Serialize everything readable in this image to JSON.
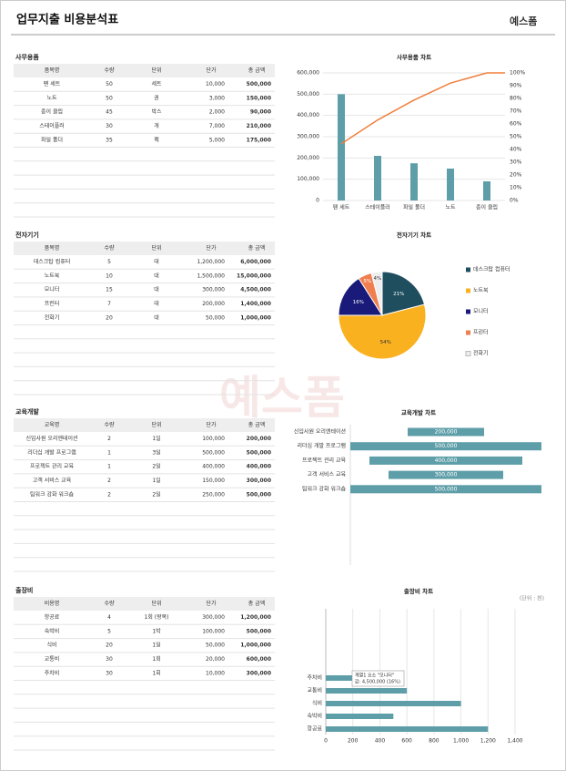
{
  "header": {
    "title": "업무지출 비용분석표",
    "logo": "예스폼"
  },
  "tables": [
    {
      "label": "사무용품",
      "columns": [
        "품목명",
        "수량",
        "단위",
        "단가",
        "총 금액"
      ],
      "rows": [
        [
          "펜 세트",
          "50",
          "세트",
          "10,000",
          "500,000"
        ],
        [
          "노트",
          "50",
          "권",
          "3,000",
          "150,000"
        ],
        [
          "종이 클립",
          "45",
          "박스",
          "2,000",
          "90,000"
        ],
        [
          "스테이플러",
          "30",
          "개",
          "7,000",
          "210,000"
        ],
        [
          "파일 폴더",
          "35",
          "팩",
          "5,000",
          "175,000"
        ]
      ]
    },
    {
      "label": "전자기기",
      "columns": [
        "품목명",
        "수량",
        "단위",
        "단가",
        "총 금액"
      ],
      "rows": [
        [
          "데스크탑 컴퓨터",
          "5",
          "대",
          "1,200,000",
          "6,000,000"
        ],
        [
          "노트북",
          "10",
          "대",
          "1,500,000",
          "15,000,000"
        ],
        [
          "모니터",
          "15",
          "대",
          "300,000",
          "4,500,000"
        ],
        [
          "프린터",
          "7",
          "대",
          "200,000",
          "1,400,000"
        ],
        [
          "전화기",
          "20",
          "대",
          "50,000",
          "1,000,000"
        ]
      ]
    },
    {
      "label": "교육개발",
      "columns": [
        "교육명",
        "수량",
        "단위",
        "단가",
        "총 금액"
      ],
      "rows": [
        [
          "신입사원 오리엔테이션",
          "2",
          "1일",
          "100,000",
          "200,000"
        ],
        [
          "리더십 개발 프로그램",
          "1",
          "3일",
          "500,000",
          "500,000"
        ],
        [
          "프로젝트 관리 교육",
          "1",
          "2일",
          "400,000",
          "400,000"
        ],
        [
          "고객 서비스 교육",
          "2",
          "1일",
          "150,000",
          "300,000"
        ],
        [
          "팀워크 강화 워크숍",
          "2",
          "2일",
          "250,000",
          "500,000"
        ]
      ]
    },
    {
      "label": "출장비",
      "columns": [
        "비용명",
        "수량",
        "단위",
        "단가",
        "총 금액"
      ],
      "rows": [
        [
          "항공료",
          "4",
          "1회 (왕복)",
          "300,000",
          "1,200,000"
        ],
        [
          "숙박비",
          "5",
          "1박",
          "100,000",
          "500,000"
        ],
        [
          "식비",
          "20",
          "1일",
          "50,000",
          "1,000,000"
        ],
        [
          "교통비",
          "30",
          "1회",
          "20,000",
          "600,000"
        ],
        [
          "주차비",
          "30",
          "1회",
          "10,000",
          "300,000"
        ]
      ]
    }
  ],
  "chart_data": [
    {
      "type": "pareto",
      "title": "사무용품 차트",
      "categories": [
        "펜 세트",
        "스테이플러",
        "파일 폴더",
        "노트",
        "종이 클립"
      ],
      "series": [
        {
          "values": [
            500000,
            210000,
            175000,
            150000,
            90000
          ],
          "color": "#5e9ea8"
        },
        {
          "values": [
            44.4,
            63.1,
            78.7,
            92,
            100
          ],
          "color": "#f07f3c",
          "axis": "y2"
        }
      ],
      "ylim": [
        0,
        600000
      ],
      "yticks": [
        0,
        {
          "value": 100000,
          "label": "100,000"
        },
        {
          "value": 200000,
          "label": "200,000"
        },
        {
          "value": 300000,
          "label": "300,000"
        },
        {
          "value": 400000,
          "label": "400,000"
        },
        {
          "value": 500000,
          "label": "500,000"
        },
        {
          "value": 600000,
          "label": "600,000"
        }
      ],
      "y2lim": [
        0,
        100
      ],
      "y2ticks": [
        {
          "value": 0,
          "label": "0%"
        },
        {
          "value": 10,
          "label": "10%"
        },
        {
          "value": 20,
          "label": "20%"
        },
        {
          "value": 30,
          "label": "30%"
        },
        {
          "value": 40,
          "label": "40%"
        },
        {
          "value": 50,
          "label": "50%"
        },
        {
          "value": 60,
          "label": "60%"
        },
        {
          "value": 70,
          "label": "70%"
        },
        {
          "value": 80,
          "label": "80%"
        },
        {
          "value": 90,
          "label": "90%"
        },
        {
          "value": 100,
          "label": "100%"
        }
      ],
      "grid": true
    },
    {
      "type": "pie",
      "title": "전자기기 차트",
      "categories": [
        "데스크탑 컴퓨터",
        "노트북",
        "모니터",
        "프린터",
        "전화기"
      ],
      "values": [
        21,
        54,
        16,
        5,
        4
      ],
      "value_labels": [
        "21%",
        "54%",
        "16%",
        "5%",
        "4%"
      ],
      "colors": [
        "#1f4e5f",
        "#f9b120",
        "#1a1a7a",
        "#f07f50",
        "#eeeeee"
      ],
      "legend": "right"
    },
    {
      "type": "funnel",
      "title": "교육개발 차트",
      "categories": [
        "신입사원 오리엔테이션",
        "리더십 개발 프로그램",
        "프로젝트 관리 교육",
        "고객 서비스 교육",
        "팀워크 강화 워크숍"
      ],
      "values": [
        200000,
        500000,
        400000,
        300000,
        500000
      ],
      "value_labels": [
        "200,000",
        "500,000",
        "400,000",
        "300,000",
        "500,000"
      ],
      "color": "#5e9ea8"
    },
    {
      "type": "hbar",
      "title": "출장비 차트",
      "unit_label": "(단위 : 천)",
      "categories": [
        "항공료",
        "숙박비",
        "식비",
        "교통비",
        "주차비"
      ],
      "values": [
        1200,
        500,
        1000,
        600,
        300
      ],
      "color": "#5e9ea8",
      "xlim": [
        0,
        1400
      ],
      "xticks": [
        0,
        200,
        400,
        600,
        800,
        {
          "value": 1000,
          "label": "1,000"
        },
        {
          "value": 1200,
          "label": "1,200"
        },
        {
          "value": 1400,
          "label": "1,400"
        }
      ],
      "grid": true,
      "tooltip": [
        "계열1 요소 \"모니터\"",
        "값: 4,500,000 (16%)"
      ]
    }
  ]
}
